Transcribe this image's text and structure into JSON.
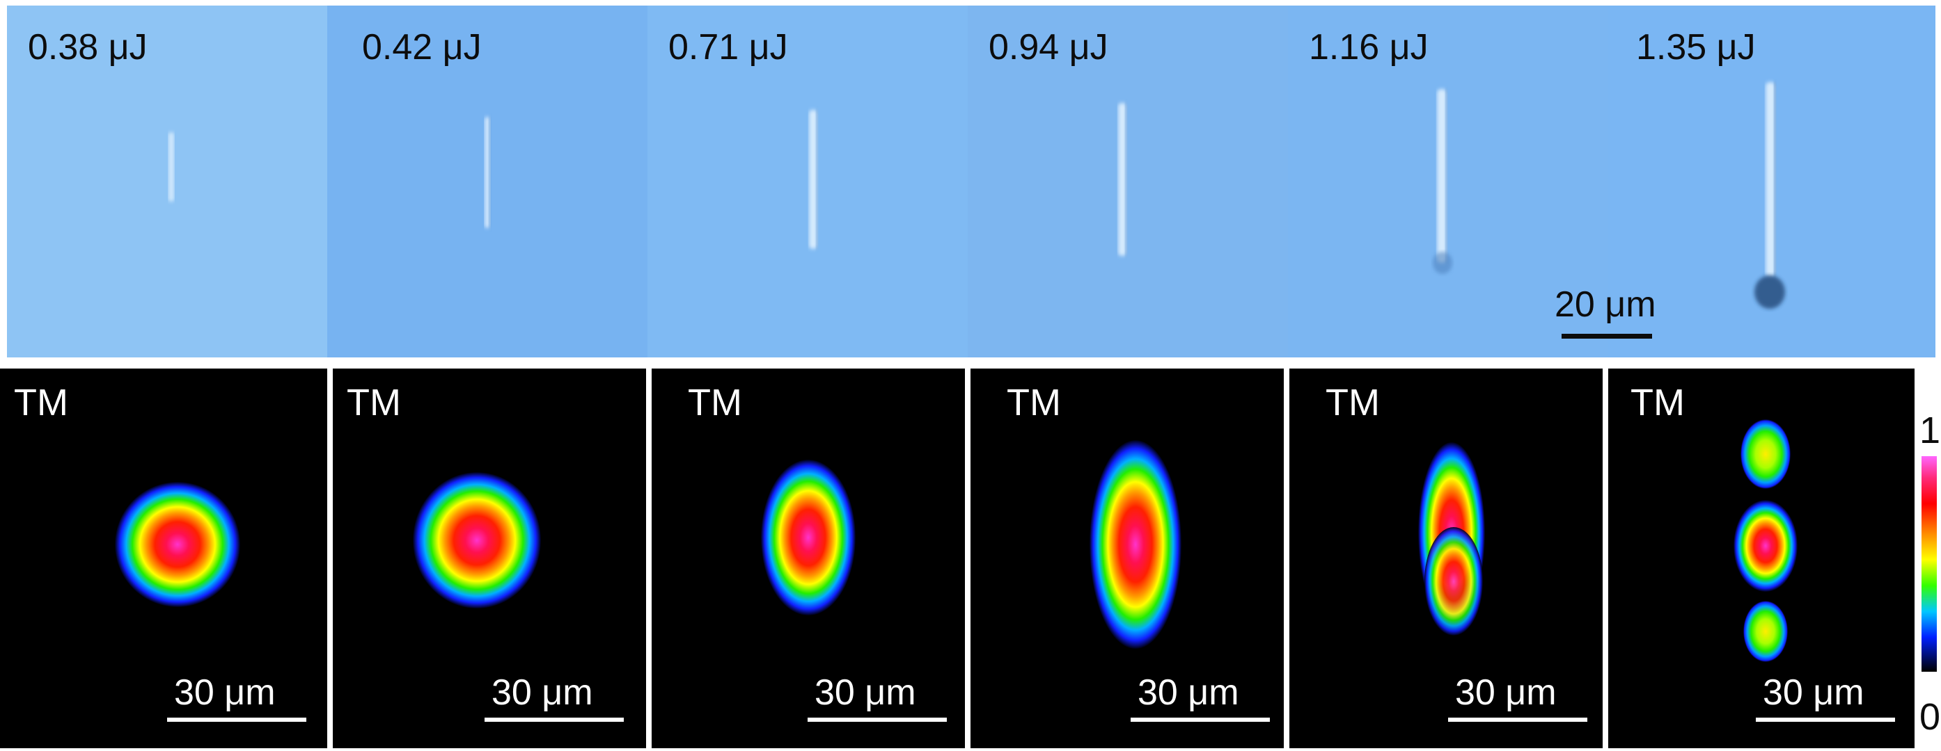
{
  "top_row": {
    "panels": [
      {
        "energy": "0.38 μJ"
      },
      {
        "energy": "0.42 μJ"
      },
      {
        "energy": "0.71 μJ"
      },
      {
        "energy": "0.94 μJ"
      },
      {
        "energy": "1.16 μJ"
      },
      {
        "energy": "1.35 μJ"
      }
    ],
    "scale_bar_label": "20 μm",
    "background_color": "#7cb8f2"
  },
  "bottom_row": {
    "panels": [
      {
        "polarization": "TM",
        "scale_bar_label": "30 μm"
      },
      {
        "polarization": "TM",
        "scale_bar_label": "30 μm"
      },
      {
        "polarization": "TM",
        "scale_bar_label": "30 μm"
      },
      {
        "polarization": "TM",
        "scale_bar_label": "30 μm"
      },
      {
        "polarization": "TM",
        "scale_bar_label": "30 μm"
      },
      {
        "polarization": "TM",
        "scale_bar_label": "30 μm"
      }
    ]
  },
  "colorbar": {
    "max_label": "1",
    "min_label": "0",
    "colors": [
      "#ff66ff",
      "#ff0000",
      "#ffff00",
      "#33ff00",
      "#00c8ff",
      "#0020ff",
      "#000000"
    ]
  }
}
